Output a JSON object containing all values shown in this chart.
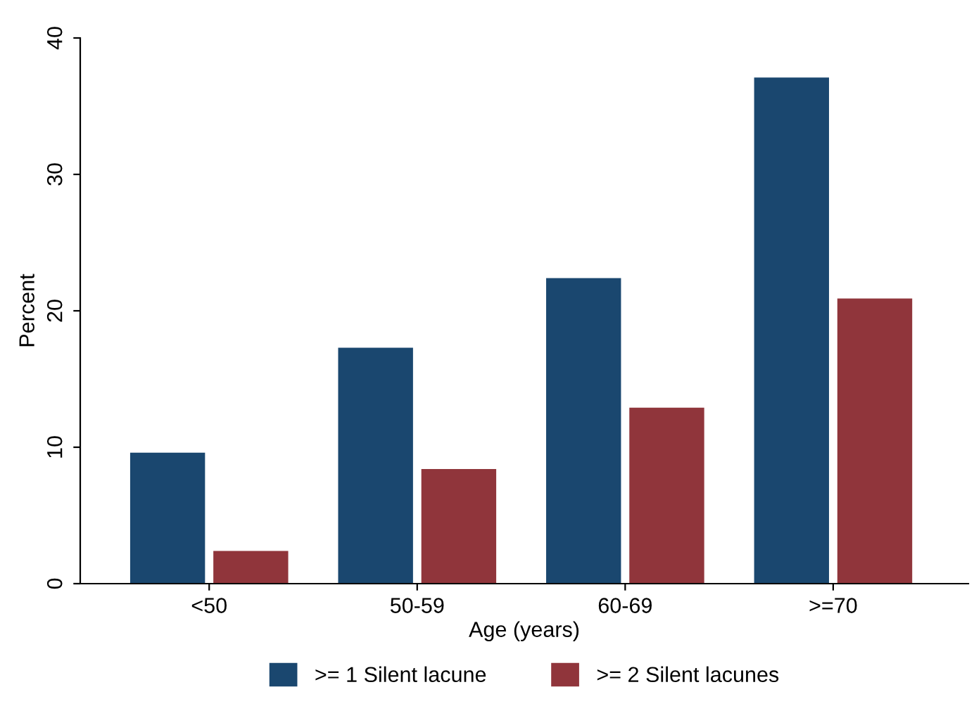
{
  "chart_data": {
    "type": "bar",
    "xlabel": "Age (years)",
    "ylabel": "Percent",
    "categories": [
      "<50",
      "50-59",
      "60-69",
      ">=70"
    ],
    "series": [
      {
        "name": ">= 1 Silent lacune",
        "color": "#1a476f",
        "values": [
          9.6,
          17.3,
          22.4,
          37.1
        ]
      },
      {
        "name": ">= 2 Silent lacunes",
        "color": "#90353b",
        "values": [
          2.4,
          8.4,
          12.9,
          20.9
        ]
      }
    ],
    "ylim": [
      0,
      40
    ],
    "yticks": [
      0,
      10,
      20,
      30,
      40
    ],
    "grid": false,
    "legend": "bottom"
  }
}
